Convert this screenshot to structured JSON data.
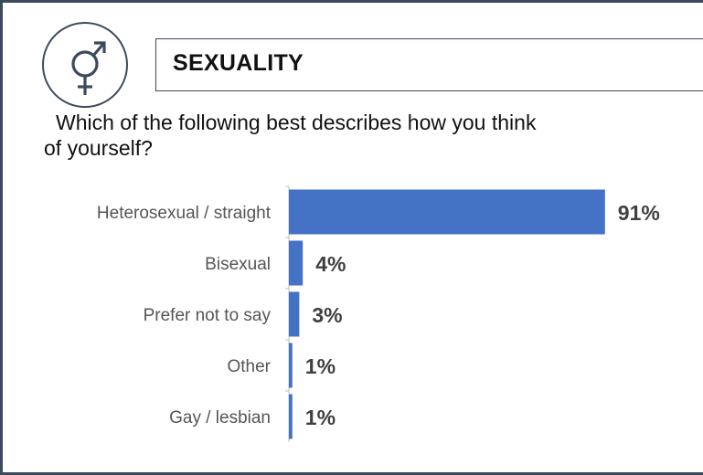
{
  "header": {
    "icon": "gender-symbol-icon",
    "title": "SEXUALITY"
  },
  "question": {
    "line1": "Which of the following best describes how you think",
    "line2": "of yourself?"
  },
  "colors": {
    "bar": "#4472c4",
    "border": "#3d4a5c",
    "axis": "#bfbfbf"
  },
  "chart_data": {
    "type": "bar",
    "orientation": "horizontal",
    "categories": [
      "Heterosexual / straight",
      "Bisexual",
      "Prefer not to say",
      "Other",
      "Gay / lesbian"
    ],
    "values": [
      91,
      4,
      3,
      1,
      1
    ],
    "value_labels": [
      "91%",
      "4%",
      "3%",
      "1%",
      "1%"
    ],
    "unit": "%",
    "xlim": [
      0,
      100
    ],
    "grid": false
  }
}
